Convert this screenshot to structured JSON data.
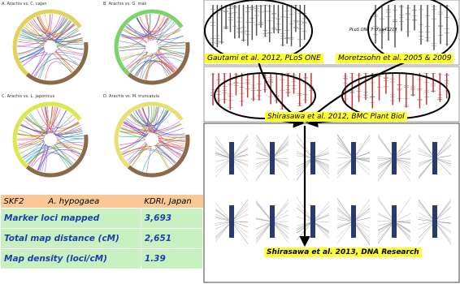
{
  "panels": [
    {
      "label": "A. Arachis vs. C. cajan"
    },
    {
      "label": "B. Arachis vs. G. max"
    },
    {
      "label": "C. Arachis vs. L. japonicus"
    },
    {
      "label": "D. Arachis vs. M. truncatula"
    }
  ],
  "labels": [
    "Gautami et al. 2012, PLoS ONE",
    "Moretzsohn et al. 2005 & 2009",
    "Shirasawa et al. 2012, BMC Plant Biol",
    "Shirasawa et al. 2013, DNA Research"
  ],
  "note": "PLoS ONE 7 (7):e41213",
  "table": {
    "header": [
      "SKF2",
      "A. hypogaea",
      "KDRI, Japan"
    ],
    "rows": [
      [
        "Marker loci mapped",
        "3,693"
      ],
      [
        "Total map distance (cM)",
        "2,651"
      ],
      [
        "Map density (loci/cM)",
        "1.39"
      ]
    ]
  }
}
